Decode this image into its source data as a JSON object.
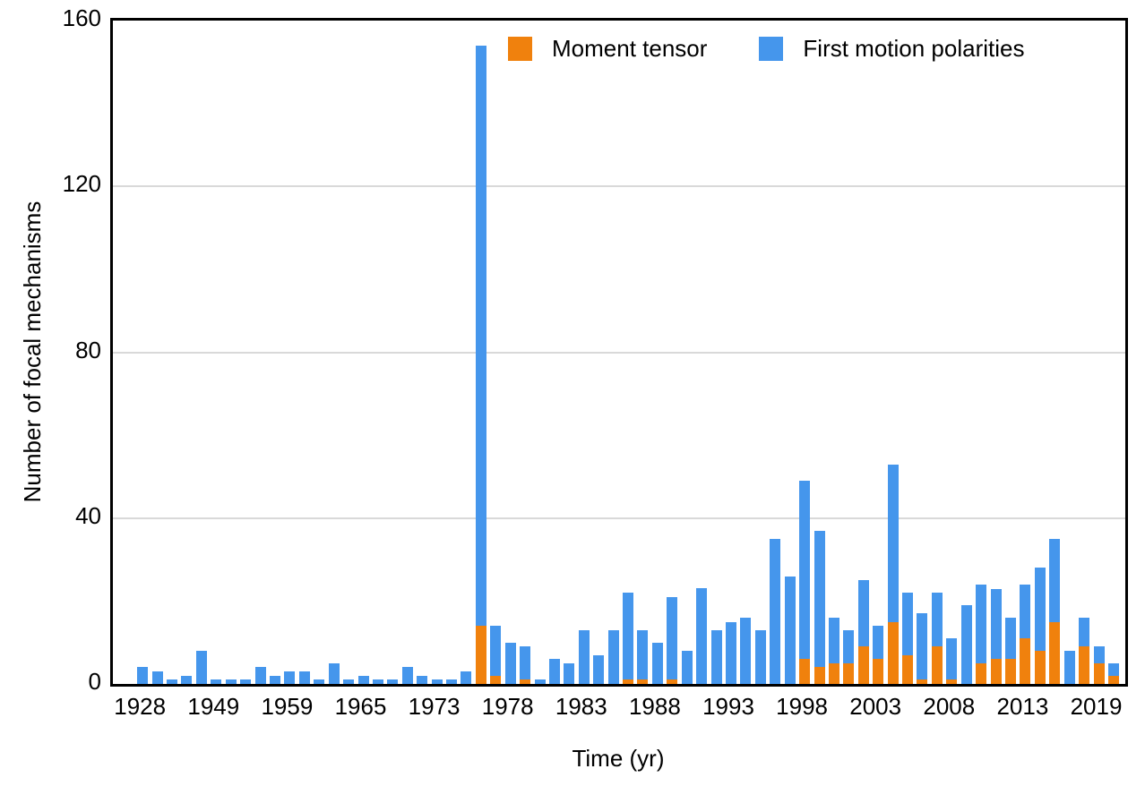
{
  "chart_data": {
    "type": "bar",
    "stacked": true,
    "xlabel": "Time (yr)",
    "ylabel": "Number of focal mechanisms",
    "ylim": [
      0,
      160
    ],
    "yticks": [
      0,
      40,
      80,
      120,
      160
    ],
    "grid": "horizontal",
    "legend_position": "top",
    "n_bars": 67,
    "x_tick_labels": [
      "1928",
      "1949",
      "1959",
      "1965",
      "1973",
      "1978",
      "1983",
      "1988",
      "1993",
      "1998",
      "2003",
      "2008",
      "2013",
      "2019"
    ],
    "label_every": 5,
    "colors": {
      "moment_tensor": "#F0810D",
      "first_motion": "#4596EC"
    },
    "series": [
      {
        "name": "Moment tensor",
        "color": "#F0810D",
        "values": [
          0,
          0,
          0,
          0,
          0,
          0,
          0,
          0,
          0,
          0,
          0,
          0,
          0,
          0,
          0,
          0,
          0,
          0,
          0,
          0,
          0,
          0,
          0,
          14,
          2,
          0,
          1,
          0,
          0,
          0,
          0,
          0,
          0,
          1,
          1,
          0,
          1,
          0,
          0,
          0,
          0,
          0,
          0,
          0,
          0,
          6,
          4,
          5,
          5,
          9,
          6,
          15,
          7,
          1,
          9,
          1,
          0,
          5,
          6,
          6,
          11,
          8,
          15,
          0,
          9,
          5,
          2
        ]
      },
      {
        "name": "First motion polarities",
        "color": "#4596EC",
        "values": [
          4,
          3,
          1,
          2,
          8,
          1,
          1,
          1,
          4,
          2,
          3,
          3,
          1,
          5,
          1,
          2,
          1,
          1,
          4,
          2,
          1,
          1,
          3,
          140,
          12,
          10,
          8,
          1,
          6,
          5,
          13,
          7,
          13,
          21,
          12,
          10,
          20,
          8,
          23,
          13,
          15,
          16,
          13,
          35,
          26,
          43,
          33,
          11,
          8,
          16,
          8,
          38,
          15,
          16,
          13,
          10,
          19,
          19,
          17,
          10,
          13,
          20,
          20,
          8,
          7,
          4,
          3
        ]
      }
    ],
    "stacked_totals_note": "totals = moment_tensor + first_motion; tallest bar total = 154"
  }
}
